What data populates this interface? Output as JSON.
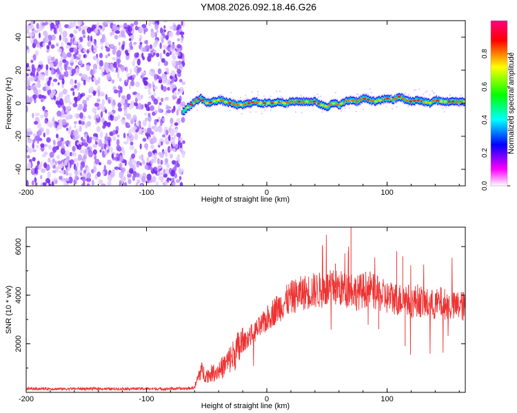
{
  "title": "YM08.2026.092.18.46.G26",
  "chart_data": [
    {
      "type": "heatmap",
      "title": "YM08.2026.092.18.46.G26",
      "xlabel": "Height of straight line (km)",
      "ylabel": "Frequency (Hz)",
      "xlim": [
        -200,
        165
      ],
      "ylim": [
        -50,
        50
      ],
      "x_ticks": [
        -200,
        -100,
        0,
        100
      ],
      "y_ticks": [
        -40,
        -20,
        0,
        20,
        40
      ],
      "noise_region_x": [
        -200,
        -70
      ],
      "tone_region_x": [
        -70,
        165
      ],
      "tone_trace": {
        "x": [
          -70,
          -65,
          -60,
          -55,
          -50,
          -45,
          -40,
          -35,
          -30,
          -25,
          -20,
          -15,
          -10,
          -5,
          0,
          5,
          10,
          15,
          20,
          25,
          30,
          35,
          40,
          45,
          50,
          55,
          60,
          65,
          70,
          75,
          80,
          85,
          90,
          95,
          100,
          105,
          110,
          115,
          120,
          125,
          130,
          135,
          140,
          145,
          150,
          155,
          160,
          165
        ],
        "y": [
          -5,
          -2,
          1,
          3,
          0,
          1,
          2,
          1,
          0,
          -1,
          -1,
          0,
          1,
          0,
          0,
          0,
          1,
          0,
          1,
          1,
          1,
          1,
          1,
          -1,
          -2,
          0,
          -1,
          1,
          2,
          1,
          3,
          2,
          1,
          2,
          3,
          2,
          4,
          2,
          1,
          2,
          1,
          0,
          2,
          1,
          1,
          1,
          1,
          1
        ]
      },
      "colorbar": {
        "label": "Normalized spectral amplitude",
        "ticks": [
          0.0,
          0.2,
          0.4,
          0.6,
          0.8
        ],
        "colors": [
          "#ffffff",
          "#ff00ff",
          "#0000ff",
          "#00ffff",
          "#00ff00",
          "#ffff00",
          "#ff0000"
        ]
      }
    },
    {
      "type": "line",
      "xlabel": "Height of straight line (km)",
      "ylabel": "SNR (10 * v/v)",
      "xlim": [
        -200,
        165
      ],
      "ylim": [
        0,
        6800
      ],
      "x_ticks": [
        -200,
        -100,
        0,
        100
      ],
      "y_ticks": [
        2000,
        4000,
        6000
      ],
      "color": "#ee3333",
      "series": [
        {
          "x": [
            -200,
            -190,
            -180,
            -170,
            -160,
            -150,
            -140,
            -130,
            -120,
            -110,
            -100,
            -90,
            -80,
            -70,
            -65,
            -60,
            -55,
            -50,
            -45,
            -40,
            -35,
            -30,
            -25,
            -20,
            -15,
            -10,
            -5,
            0,
            5,
            10,
            15,
            20,
            25,
            30,
            35,
            40,
            45,
            50,
            55,
            60,
            65,
            70,
            75,
            80,
            85,
            90,
            95,
            100,
            105,
            110,
            115,
            120,
            125,
            130,
            135,
            140,
            145,
            150,
            155,
            160,
            165
          ],
          "y": [
            150,
            150,
            150,
            140,
            150,
            150,
            150,
            140,
            150,
            150,
            150,
            140,
            150,
            150,
            160,
            200,
            900,
            700,
            800,
            900,
            1100,
            1400,
            1700,
            2000,
            2300,
            2500,
            2700,
            3000,
            3300,
            3500,
            3700,
            3900,
            4000,
            4100,
            4150,
            4200,
            4200,
            4250,
            4300,
            4300,
            4200,
            4300,
            4100,
            4200,
            4300,
            4100,
            4000,
            3900,
            3900,
            3800,
            3900,
            3700,
            3800,
            3700,
            3600,
            3600,
            3700,
            3600,
            3500,
            3600,
            3500
          ]
        }
      ]
    }
  ]
}
